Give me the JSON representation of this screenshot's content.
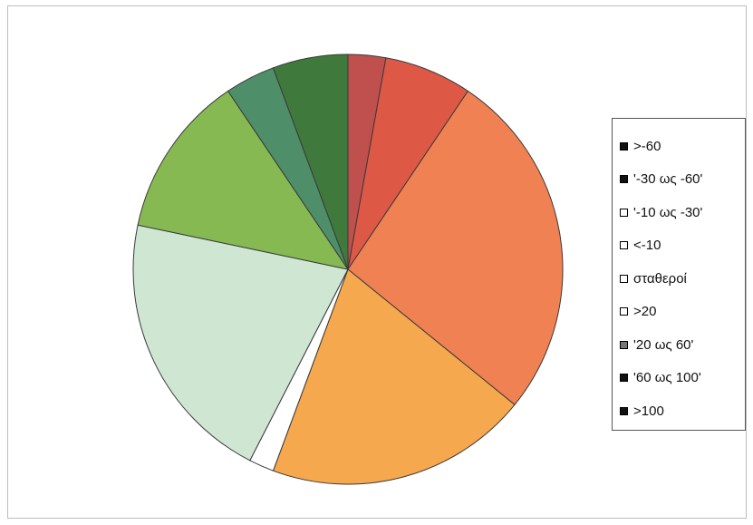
{
  "chart_data": {
    "type": "pie",
    "title": "",
    "legend_position": "right",
    "series": [
      {
        "label": ">-60",
        "value": 3,
        "color": "#c0504d",
        "legend_color": "#111111"
      },
      {
        "label": "'-30 ως -60'",
        "value": 7,
        "color": "#de5846",
        "legend_color": "#111111"
      },
      {
        "label": "'-10 ως -30'",
        "value": 28,
        "color": "#f08152",
        "legend_color": "#ffffff"
      },
      {
        "label": "<-10",
        "value": 21,
        "color": "#f5a84e",
        "legend_color": "#ffffff"
      },
      {
        "label": "σταθεροί",
        "value": 2,
        "color": "#ffffff",
        "legend_color": "#ffffff"
      },
      {
        "label": ">20",
        "value": 22,
        "color": "#cfe6d3",
        "legend_color": "#ffffff"
      },
      {
        "label": "'20 ως 60'",
        "value": 13,
        "color": "#87b952",
        "legend_color": "#777777"
      },
      {
        "label": "'60 ως 100'",
        "value": 4,
        "color": "#4e8e68",
        "legend_color": "#111111"
      },
      {
        "label": ">100",
        "value": 6,
        "color": "#3f7a3c",
        "legend_color": "#111111"
      }
    ]
  }
}
